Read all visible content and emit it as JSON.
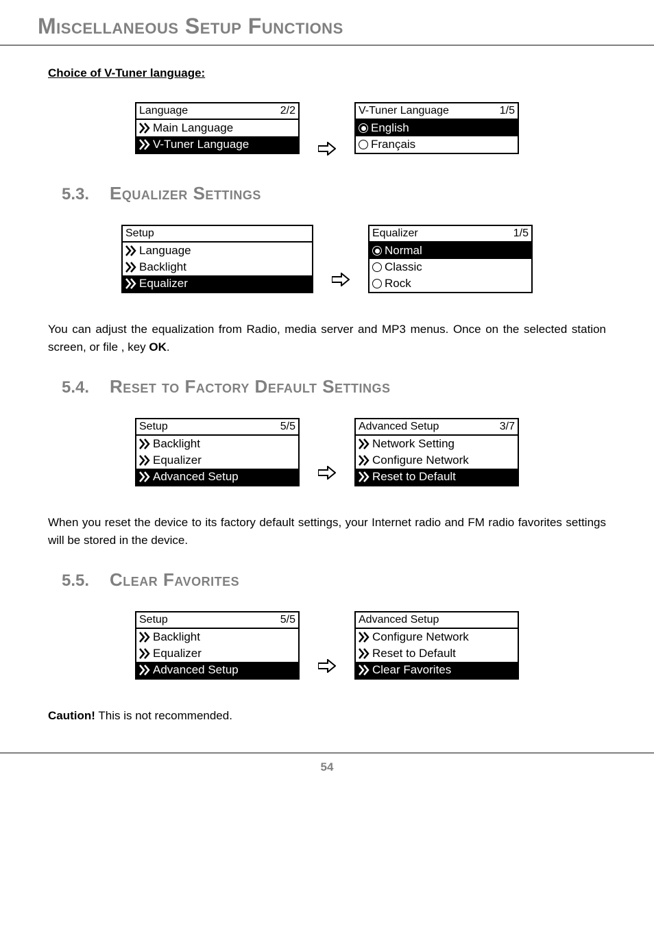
{
  "page_title": "Miscellaneous Setup Functions",
  "vtuner_heading": "Choice of V-Tuner language:",
  "lang_screen": {
    "title": "Language",
    "page": "2/2",
    "items": [
      "Main Language",
      "V-Tuner Language"
    ],
    "selected_index": 1
  },
  "vtuner_screen": {
    "title": "V-Tuner Language",
    "page": "1/5",
    "options": [
      "English",
      "Français"
    ],
    "selected_index": 0
  },
  "section53": {
    "num": "5.3.",
    "title": "Equalizer Settings"
  },
  "setup_eq_screen": {
    "title": "Setup",
    "page": "",
    "items": [
      "Language",
      "Backlight",
      "Equalizer"
    ],
    "selected_index": 2
  },
  "eq_screen": {
    "title": "Equalizer",
    "page": "1/5",
    "options": [
      "Normal",
      "Classic",
      "Rock"
    ],
    "selected_index": 0
  },
  "eq_text_before": "You can adjust the equalization from Radio, media server and MP3  menus. Once on the selected station screen, or file , key ",
  "eq_text_bold": "OK",
  "eq_text_after": ".",
  "section54": {
    "num": "5.4.",
    "title": "Reset to Factory Default Settings"
  },
  "setup_adv_screen1": {
    "title": "Setup",
    "page": "5/5",
    "items": [
      "Backlight",
      "Equalizer",
      "Advanced Setup"
    ],
    "selected_index": 2
  },
  "adv_screen_reset": {
    "title": "Advanced Setup",
    "page": "3/7",
    "items": [
      "Network Setting",
      "Configure Network",
      "Reset to Default"
    ],
    "selected_index": 2
  },
  "reset_text": "When you reset the device to its factory default settings, your Internet radio and FM radio favorites settings will be stored in the device.",
  "section55": {
    "num": "5.5.",
    "title": "Clear Favorites"
  },
  "setup_adv_screen2": {
    "title": "Setup",
    "page": "5/5",
    "items": [
      "Backlight",
      "Equalizer",
      "Advanced Setup"
    ],
    "selected_index": 2
  },
  "adv_screen_clear": {
    "title": "Advanced Setup",
    "page": "",
    "items": [
      "Configure Network",
      "Reset to Default",
      "Clear Favorites"
    ],
    "selected_index": 2
  },
  "caution_bold": "Caution!",
  "caution_text": " This is not recommended.",
  "page_number": "54"
}
